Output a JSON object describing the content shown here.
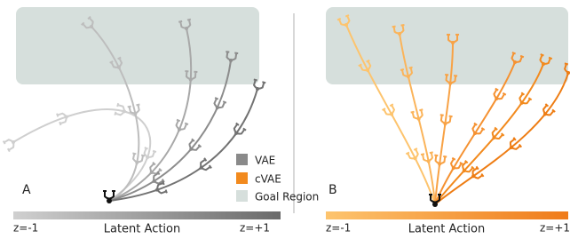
{
  "panels": [
    {
      "label": "A",
      "legend": [
        "VAE",
        "cVAE",
        "Goal Region"
      ],
      "scale": {
        "left": "z=-1",
        "title": "Latent Action",
        "right": "z=+1"
      }
    },
    {
      "label": "B",
      "scale": {
        "left": "z=-1",
        "title": "Latent Action",
        "right": "z=+1"
      }
    }
  ]
}
